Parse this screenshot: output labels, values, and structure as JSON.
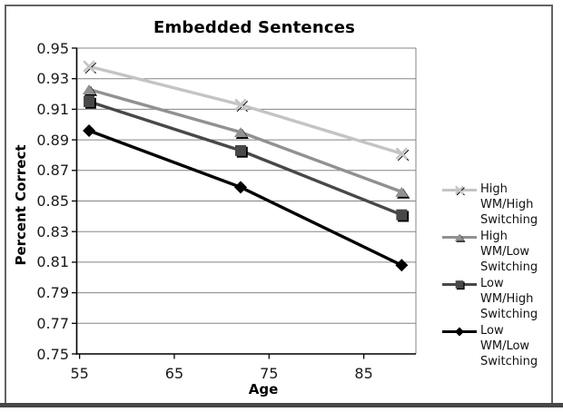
{
  "colors": {
    "background": "#ffffff",
    "frame_border": "#636363",
    "frame_bottom_edge": "#474747",
    "gridline": "#858585",
    "axis": "#000000",
    "text": "#000000"
  },
  "chart_data": {
    "type": "line",
    "title": "Embedded Sentences",
    "xlabel": "Age",
    "ylabel": "Percent Correct",
    "x": [
      56,
      72,
      89
    ],
    "xtick_values": [
      55,
      65,
      75,
      85
    ],
    "xtick_labels": [
      "55",
      "65",
      "75",
      "85"
    ],
    "ytick_values": [
      0.95,
      0.93,
      0.91,
      0.89,
      0.87,
      0.85,
      0.83,
      0.81,
      0.79,
      0.77,
      0.75
    ],
    "ytick_labels": [
      "0.95",
      "0.93",
      "0.91",
      "0.89",
      "0.87",
      "0.85",
      "0.83",
      "0.81",
      "0.79",
      "0.77",
      "0.75"
    ],
    "xlim": [
      54.7,
      90.5
    ],
    "ylim": [
      0.75,
      0.95
    ],
    "grid": "horizontal",
    "legend_position": "right",
    "series": [
      {
        "name": "High WM/High Switching",
        "label_lines": [
          "High",
          "WM/High",
          "Switching"
        ],
        "marker": "x",
        "color": "#c4c4c4",
        "values": [
          0.938,
          0.913,
          0.881
        ]
      },
      {
        "name": "High WM/Low Switching",
        "label_lines": [
          "High",
          "WM/Low",
          "Switching"
        ],
        "marker": "triangle",
        "color": "#919191",
        "values": [
          0.923,
          0.895,
          0.856
        ]
      },
      {
        "name": "Low WM/High Switching",
        "label_lines": [
          "Low",
          "WM/High",
          "Switching"
        ],
        "marker": "square",
        "color": "#484848",
        "values": [
          0.915,
          0.883,
          0.841
        ]
      },
      {
        "name": "Low WM/Low Switching",
        "label_lines": [
          "Low",
          "WM/Low",
          "Switching"
        ],
        "marker": "diamond",
        "color": "#000000",
        "values": [
          0.896,
          0.859,
          0.808
        ]
      }
    ]
  }
}
